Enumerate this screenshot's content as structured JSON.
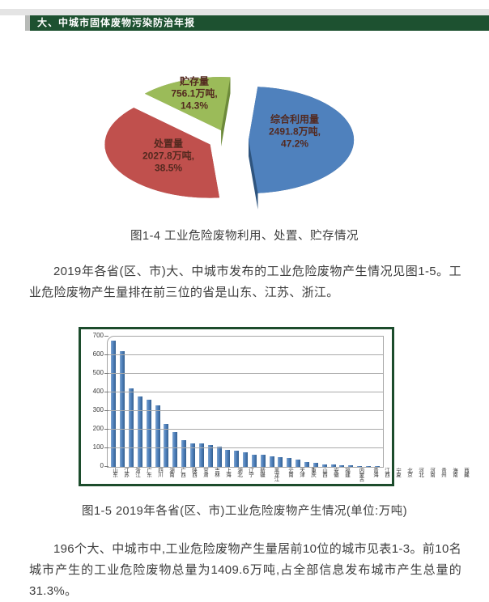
{
  "header": {
    "title": "大、中城市固体废物污染防治年报"
  },
  "figures": {
    "fig4_caption": "图1-4  工业危险废物利用、处置、贮存情况",
    "fig5_caption": "图1-5 2019年各省(区、市)工业危险废物产生情况(单位:万吨)"
  },
  "paragraphs": {
    "p1": "2019年各省(区、市)大、中城市发布的工业危险废物产生情况见图1-5。工业危险废物产生量排在前三位的省是山东、江苏、浙江。",
    "p2": "196个大、中城市中,工业危险废物产生量居前10位的城市见表1-3。前10名城市产生的工业危险废物总量为1409.6万吨,占全部信息发布城市产生总量的31.3%。"
  },
  "chart_data": [
    {
      "type": "pie",
      "title": "工业危险废物利用、处置、贮存情况",
      "unit": "万吨",
      "style": "3d-exploded",
      "start_angle_deg": -85,
      "slices": [
        {
          "id": "utilization",
          "name": "综合利用量",
          "amount": "2491.8万吨,",
          "percent": "47.2%",
          "value": 2491.8,
          "pct": 47.2,
          "color": "#4f81bd",
          "side_color": "#2e547e"
        },
        {
          "id": "disposal",
          "name": "处置量",
          "amount": "2027.8万吨,",
          "percent": "38.5%",
          "value": 2027.8,
          "pct": 38.5,
          "color": "#c0504d",
          "side_color": "#8a3432"
        },
        {
          "id": "storage",
          "name": "贮存量",
          "amount": "756.1万吨,",
          "percent": "14.3%",
          "value": 756.1,
          "pct": 14.3,
          "color": "#9bbb59",
          "side_color": "#6d8a3a"
        }
      ]
    },
    {
      "type": "bar",
      "title": "2019年各省(区、市)工业危险废物产生情况",
      "unit": "万吨",
      "categories": [
        "山东",
        "江苏",
        "浙江",
        "广东",
        "四川",
        "湖南",
        "广西",
        "陕西",
        "甘肃",
        "吉林",
        "上海",
        "湖北",
        "辽宁",
        "新疆",
        "黑龙江",
        "云南",
        "天津",
        "重庆",
        "山西",
        "安徽",
        "福建",
        "内蒙古",
        "青海",
        "江西",
        "宁夏",
        "北京",
        "河北",
        "河南",
        "贵州",
        "海南",
        "西藏"
      ],
      "values": [
        678,
        622,
        420,
        378,
        362,
        330,
        232,
        185,
        142,
        126,
        125,
        118,
        107,
        93,
        88,
        80,
        67,
        64,
        56,
        52,
        50,
        41,
        25,
        22,
        15,
        13,
        9,
        7,
        4,
        2,
        1
      ],
      "ylim": [
        0,
        700
      ],
      "ytick_step": 100,
      "yticks": [
        0,
        100,
        200,
        300,
        400,
        500,
        600,
        700
      ],
      "bar_color": "#4f81bd",
      "grid": true,
      "legend": "none"
    }
  ]
}
